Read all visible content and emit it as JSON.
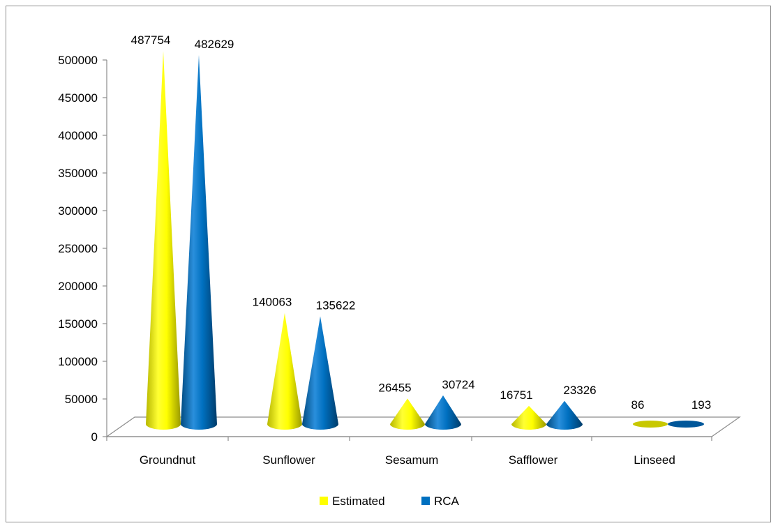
{
  "chart_data": {
    "type": "bar",
    "shape": "cone-3d",
    "categories": [
      "Groundnut",
      "Sunflower",
      "Sesamum",
      "Safflower",
      "Linseed"
    ],
    "series": [
      {
        "name": "Estimated",
        "values": [
          487754,
          140063,
          26455,
          16751,
          86
        ],
        "color": "#ffff00",
        "labels": [
          "487754",
          "140063",
          "26455",
          "16751",
          "86"
        ]
      },
      {
        "name": "RCA",
        "values": [
          482629,
          135622,
          30724,
          23326,
          193
        ],
        "color": "#0070c0",
        "labels": [
          "482629",
          "135622",
          "30724",
          "23326",
          "193"
        ]
      }
    ],
    "ylim": [
      0,
      500000
    ],
    "yticks": [
      0,
      50000,
      100000,
      150000,
      200000,
      250000,
      300000,
      350000,
      400000,
      450000,
      500000
    ],
    "ytick_labels": [
      "0",
      "50000",
      "100000",
      "150000",
      "200000",
      "250000",
      "300000",
      "350000",
      "400000",
      "450000",
      "500000"
    ],
    "legend_position": "bottom",
    "grid": false,
    "title": "",
    "xlabel": "",
    "ylabel": ""
  }
}
